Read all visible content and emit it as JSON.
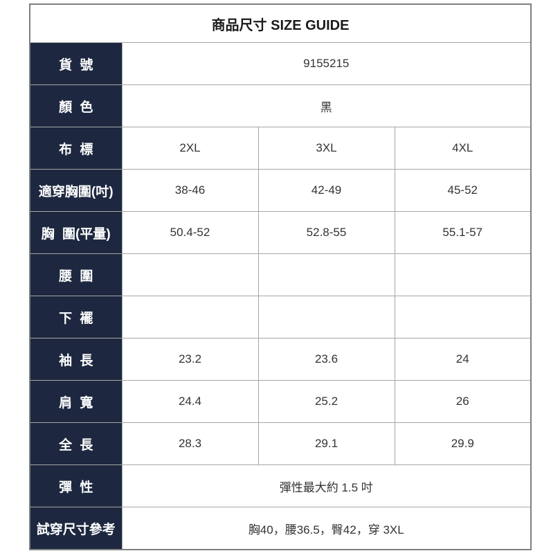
{
  "title": "商品尺寸 SIZE GUIDE",
  "rows": [
    {
      "label": "貨 號",
      "value": "9155215"
    },
    {
      "label": "顏 色",
      "value": "黑"
    },
    {
      "label": "布 標",
      "cells": [
        "2XL",
        "3XL",
        "4XL"
      ]
    },
    {
      "label": "適穿胸圍(吋)",
      "cells": [
        "38-46",
        "42-49",
        "45-52"
      ]
    },
    {
      "label": "胸 圍(平量)",
      "cells": [
        "50.4-52",
        "52.8-55",
        "55.1-57"
      ]
    },
    {
      "label": "腰 圍",
      "cells": [
        "",
        "",
        ""
      ]
    },
    {
      "label": "下 襬",
      "cells": [
        "",
        "",
        ""
      ]
    },
    {
      "label": "袖 長",
      "cells": [
        "23.2",
        "23.6",
        "24"
      ]
    },
    {
      "label": "肩 寬",
      "cells": [
        "24.4",
        "25.2",
        "26"
      ]
    },
    {
      "label": "全 長",
      "cells": [
        "28.3",
        "29.1",
        "29.9"
      ]
    },
    {
      "label": "彈 性",
      "value": "彈性最大約 1.5 吋"
    },
    {
      "label": "試穿尺寸參考",
      "value": "胸40，腰36.5，臀42，穿 3XL"
    }
  ],
  "colors": {
    "label_background": "#1d2840",
    "label_text": "#ffffff",
    "title_text": "#1a1a1a",
    "data_text": "#333333",
    "inner_border": "#a6a6a6",
    "outer_border": "#7f7f7f"
  }
}
